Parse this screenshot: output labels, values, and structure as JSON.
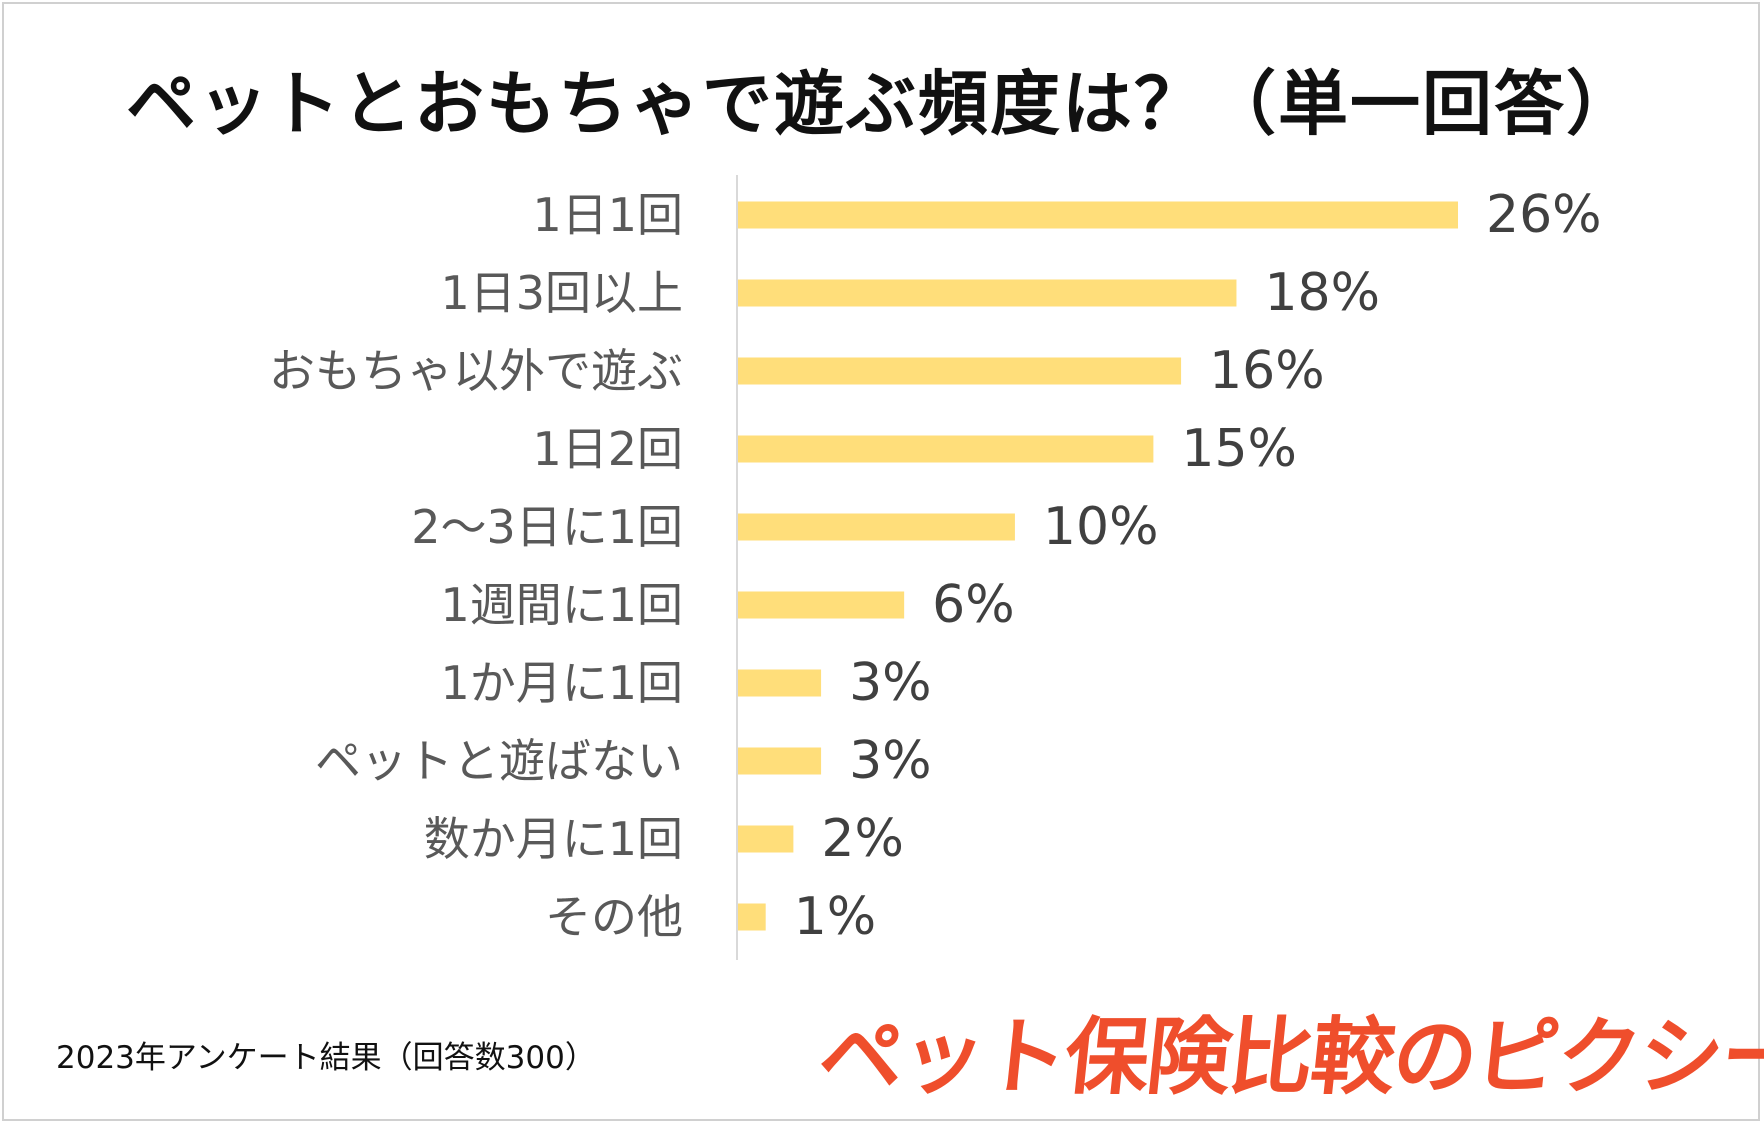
{
  "title": "ペットとおもちゃで遊ぶ頻度は？（単一回答）",
  "footnote": "2023年アンケート結果（回答数300）",
  "brand": "ペット保険比較のピクシー",
  "colors": {
    "bar": "#ffde7a",
    "axis": "#d9d9d9",
    "brand": "#ef4e2c"
  },
  "chart_data": {
    "type": "bar",
    "orientation": "horizontal",
    "title": "ペットとおもちゃで遊ぶ頻度は？（単一回答）",
    "unit": "%",
    "categories": [
      "1日1回",
      "1日3回以上",
      "おもちゃ以外で遊ぶ",
      "1日2回",
      "2～3日に1回",
      "1週間に1回",
      "1か月に1回",
      "ペットと遊ばない",
      "数か月に1回",
      "その他"
    ],
    "values": [
      26,
      18,
      16,
      15,
      10,
      6,
      3,
      3,
      2,
      1
    ],
    "value_labels": [
      "26%",
      "18%",
      "16%",
      "15%",
      "10%",
      "6%",
      "3%",
      "3%",
      "2%",
      "1%"
    ],
    "xlim": [
      0,
      26
    ],
    "grid": false,
    "legend": "none"
  }
}
